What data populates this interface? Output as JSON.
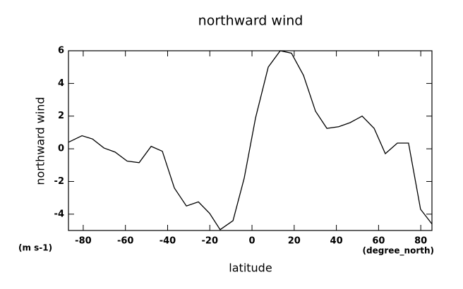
{
  "chart_data": {
    "type": "line",
    "title": "northward wind",
    "ylabel": "northward wind",
    "xlabel": "latitude",
    "yunit": "(m s-1)",
    "xunit": "(degree_north)",
    "x": [
      -87.0,
      -80.6,
      -75.6,
      -70.2,
      -64.9,
      -59.2,
      -53.5,
      -47.8,
      -42.5,
      -36.8,
      -31.1,
      -25.4,
      -20.1,
      -15.1,
      -9.0,
      -3.7,
      1.7,
      7.7,
      13.4,
      18.7,
      24.4,
      30.1,
      35.5,
      41.1,
      46.5,
      52.2,
      57.9,
      63.2,
      68.9,
      74.2,
      79.9,
      85.3
    ],
    "series": [
      {
        "name": "northward wind",
        "color": "#000000",
        "values": [
          0.4,
          0.8,
          0.6,
          0.05,
          -0.2,
          -0.75,
          -0.85,
          0.15,
          -0.15,
          -2.4,
          -3.5,
          -3.25,
          -3.95,
          -4.95,
          -4.4,
          -1.8,
          1.9,
          5.0,
          6.0,
          5.85,
          4.5,
          2.3,
          1.25,
          1.35,
          1.6,
          2.0,
          1.25,
          -0.3,
          0.35,
          0.35,
          -3.7,
          -4.6
        ]
      }
    ],
    "xlim": [
      -87,
      85.3
    ],
    "ylim": [
      -5,
      6
    ],
    "xticks": [
      -80,
      -60,
      -40,
      -20,
      0,
      20,
      40,
      60,
      80
    ],
    "yticks": [
      -4,
      -2,
      0,
      2,
      4,
      6
    ]
  }
}
